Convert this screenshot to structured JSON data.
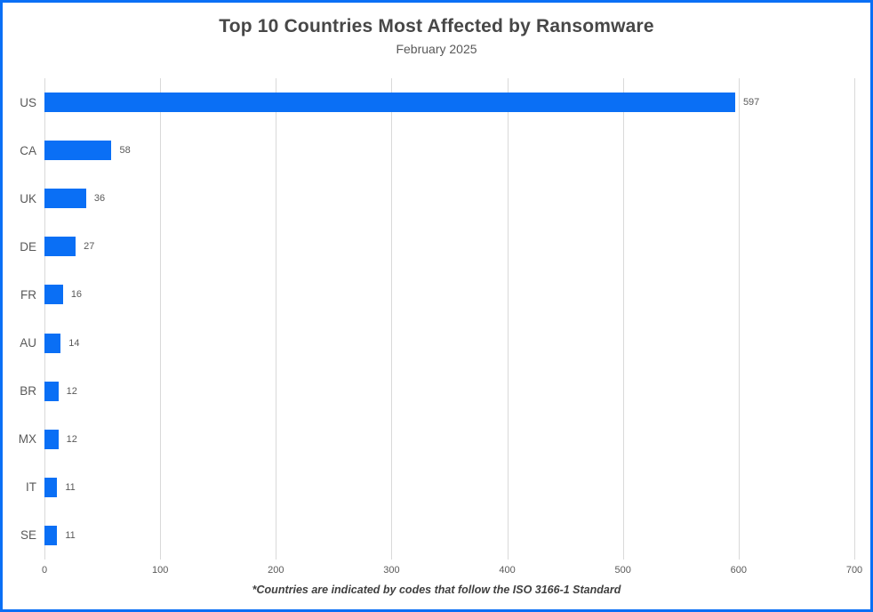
{
  "frame": {
    "border_color": "#0a6ff5",
    "background": "#ffffff"
  },
  "chart_data": {
    "type": "bar",
    "orientation": "horizontal",
    "title": "Top 10 Countries Most Affected by Ransomware",
    "subtitle": "February 2025",
    "categories": [
      "US",
      "CA",
      "UK",
      "DE",
      "FR",
      "AU",
      "BR",
      "MX",
      "IT",
      "SE"
    ],
    "values": [
      597,
      58,
      36,
      27,
      16,
      14,
      12,
      12,
      11,
      11
    ],
    "data_labels": [
      "597",
      "58",
      "36",
      "27",
      "16",
      "14",
      "12",
      "12",
      "11",
      "11"
    ],
    "xlim": [
      0,
      700
    ],
    "x_ticks": [
      0,
      100,
      200,
      300,
      400,
      500,
      600,
      700
    ],
    "grid": true,
    "gridline_color": "#d9d9d9",
    "bar_color": "#0a6ff5",
    "text_color": "#595959",
    "title_color": "#474747",
    "legend": "none",
    "footnote": "*Countries are indicated by codes that follow the ISO 3166-1 Standard"
  }
}
